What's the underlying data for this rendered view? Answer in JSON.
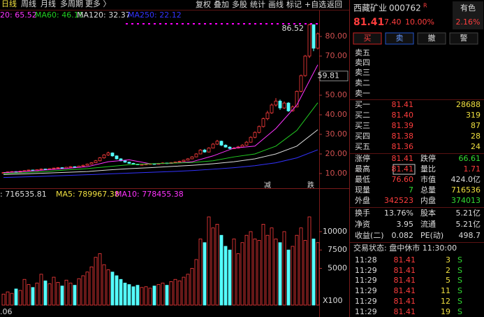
{
  "period_tabs": [
    "日线",
    "周线",
    "月线",
    "多周期",
    "更多 〉"
  ],
  "tools": [
    "复权",
    "叠加",
    "多股",
    "统计",
    "画线",
    "标记",
    "+自选",
    "返回"
  ],
  "price_chart": {
    "legend": [
      "20: 65.52",
      "MA60: 46.15",
      "MA120: 32.37",
      "MA250: 22.12"
    ],
    "ylim": [
      5.7,
      87.9
    ],
    "yticks": [
      {
        "value": 80,
        "label": "80.00"
      },
      {
        "value": 70,
        "label": "70.00"
      },
      {
        "value": 60,
        "label": "60.00"
      },
      {
        "value": 50,
        "label": "50.00"
      },
      {
        "value": 40,
        "label": "40.00"
      },
      {
        "value": 30,
        "label": "30.00"
      },
      {
        "value": 20,
        "label": "20.00"
      },
      {
        "value": 10,
        "label": "10.00"
      }
    ],
    "cursor_label": {
      "value": 59.81,
      "label": "59.81"
    },
    "high_label": "86.52",
    "markers": [
      "减",
      "跌"
    ],
    "candles": [
      [
        10.3,
        10.7,
        10.1,
        10.5
      ],
      [
        10.5,
        11,
        10.4,
        10.8
      ],
      [
        10.8,
        11.2,
        10.6,
        11
      ],
      [
        11,
        11.1,
        10.5,
        10.7
      ],
      [
        10.7,
        11.4,
        10.6,
        11.2
      ],
      [
        11.2,
        11.7,
        11,
        11.5
      ],
      [
        11.5,
        12,
        11.3,
        11.8
      ],
      [
        11.8,
        11.9,
        11.2,
        11.4
      ],
      [
        11.4,
        12.2,
        11.3,
        12
      ],
      [
        12,
        12.6,
        11.9,
        12.3
      ],
      [
        12.3,
        12.4,
        11.9,
        12.1
      ],
      [
        12.1,
        12.7,
        12,
        12.5
      ],
      [
        12.5,
        13,
        12.3,
        12.8
      ],
      [
        12.8,
        13.3,
        12.6,
        13
      ],
      [
        13,
        13.1,
        12.4,
        12.6
      ],
      [
        12.6,
        13.4,
        12.5,
        13.2
      ],
      [
        13.2,
        13.8,
        13,
        13.5
      ],
      [
        13.5,
        13.6,
        12.9,
        13.1
      ],
      [
        13.1,
        14,
        13,
        13.8
      ],
      [
        13.8,
        14.5,
        13.6,
        14.2
      ],
      [
        14.2,
        15.1,
        14,
        14.8
      ],
      [
        14.8,
        15.8,
        14.6,
        15.5
      ],
      [
        15.5,
        16.9,
        15.3,
        16.5
      ],
      [
        16.5,
        18.4,
        16.2,
        18
      ],
      [
        18,
        19.9,
        17.6,
        19.5
      ],
      [
        19.5,
        21.2,
        19,
        20.5
      ],
      [
        20.5,
        20.8,
        18.6,
        19
      ],
      [
        19,
        19.3,
        17.2,
        17.5
      ],
      [
        17.5,
        17.8,
        16.2,
        16.5
      ],
      [
        16.5,
        16.9,
        15.5,
        15.8
      ],
      [
        15.8,
        16,
        15,
        15.2
      ],
      [
        15.2,
        15.5,
        14.6,
        14.8
      ],
      [
        14.8,
        15,
        14.3,
        14.5
      ],
      [
        14.5,
        14.9,
        14.3,
        14.6
      ],
      [
        14.6,
        15.1,
        14.4,
        14.8
      ],
      [
        14.8,
        15.3,
        14.6,
        15
      ],
      [
        15,
        15.1,
        14.5,
        14.7
      ],
      [
        14.7,
        15.4,
        14.6,
        15.2
      ],
      [
        15.2,
        15.7,
        15,
        15.4
      ],
      [
        15.4,
        15.5,
        14.9,
        15.1
      ],
      [
        15.1,
        15.8,
        15,
        15.6
      ],
      [
        15.6,
        16.1,
        15.4,
        15.9
      ],
      [
        15.9,
        16.5,
        15.7,
        16.2
      ],
      [
        16.2,
        17.1,
        16,
        16.8
      ],
      [
        16.8,
        17.9,
        16.6,
        17.5
      ],
      [
        17.5,
        18.9,
        17.3,
        18.5
      ],
      [
        18.5,
        20.4,
        18.3,
        20
      ],
      [
        20,
        22.5,
        19.8,
        22
      ],
      [
        22,
        22.6,
        20.6,
        21
      ],
      [
        21,
        23.4,
        20.8,
        23
      ],
      [
        23,
        25.6,
        22.8,
        25
      ],
      [
        25,
        27.2,
        24.6,
        26.5
      ],
      [
        26.5,
        26.8,
        24,
        24.5
      ],
      [
        24.5,
        24.9,
        23.2,
        23.5
      ],
      [
        23.5,
        23.9,
        22.4,
        22.8
      ],
      [
        22.8,
        23.5,
        22.5,
        23
      ],
      [
        23,
        24.1,
        22.8,
        23.6
      ],
      [
        23.6,
        25,
        23.4,
        24.5
      ],
      [
        24.5,
        26.6,
        24.2,
        26
      ],
      [
        26,
        29,
        25.8,
        28.5
      ],
      [
        28.5,
        31.5,
        28,
        31
      ],
      [
        31,
        34.5,
        30.5,
        34
      ],
      [
        34,
        38.6,
        33.5,
        38
      ],
      [
        38,
        42,
        37.2,
        41
      ],
      [
        41,
        45.8,
        40.5,
        45
      ],
      [
        45,
        48.5,
        44.2,
        47
      ],
      [
        47,
        47.8,
        42.5,
        43.5
      ],
      [
        43.5,
        46.8,
        43,
        46
      ],
      [
        46,
        46.5,
        41.5,
        42
      ],
      [
        42,
        44.8,
        41.6,
        44
      ],
      [
        44,
        52.4,
        43.8,
        52
      ],
      [
        52,
        60.5,
        51.5,
        60
      ],
      [
        60,
        70.5,
        59.5,
        70
      ],
      [
        70,
        86.52,
        69,
        86
      ],
      [
        86,
        86.2,
        72.5,
        74
      ],
      [
        74,
        82,
        73.4,
        81.41
      ]
    ],
    "ma": [
      {
        "name": "MA20",
        "color": "#ff33ff",
        "x": [
          0,
          5,
          10,
          15,
          20,
          25,
          30,
          35,
          40,
          45,
          50,
          55,
          60,
          65,
          70,
          75
        ],
        "values": [
          10.5,
          11,
          11.8,
          12.6,
          13.5,
          16,
          17,
          15,
          15.2,
          16,
          19,
          23,
          24,
          33,
          45,
          65.52
        ]
      },
      {
        "name": "MA60",
        "color": "#22cc22",
        "x": [
          0,
          5,
          10,
          15,
          20,
          25,
          30,
          35,
          40,
          45,
          50,
          55,
          60,
          65,
          70,
          75
        ],
        "values": [
          10,
          10.5,
          11,
          11.8,
          12.5,
          13.5,
          14.5,
          15,
          15.3,
          15.6,
          16.5,
          18.5,
          20,
          24,
          32,
          46.15
        ]
      },
      {
        "name": "MA120",
        "color": "#dddddd",
        "x": [
          0,
          5,
          10,
          15,
          20,
          25,
          30,
          35,
          40,
          45,
          50,
          55,
          60,
          65,
          70,
          75
        ],
        "values": [
          9.5,
          9.8,
          10.2,
          10.6,
          11,
          11.8,
          12.5,
          13,
          13.6,
          14.2,
          15,
          16,
          17.5,
          20,
          24,
          32.37
        ]
      },
      {
        "name": "MA250",
        "color": "#3333ff",
        "x": [
          0,
          5,
          10,
          15,
          20,
          25,
          30,
          35,
          40,
          45,
          50,
          55,
          60,
          65,
          70,
          75
        ],
        "values": [
          8,
          8.3,
          8.6,
          9,
          9.4,
          9.8,
          10.2,
          10.6,
          11,
          11.5,
          12.2,
          13,
          14,
          15.5,
          18,
          22.12
        ]
      }
    ]
  },
  "volume_chart": {
    "legend": [
      ": 716535.81",
      "MA5: 789967.38",
      "MA10: 778455.38"
    ],
    "ylim": [
      0,
      13900
    ],
    "yticks": [
      5000,
      7500,
      10000
    ],
    "unit": "X100",
    "corner": ".06",
    "values": [
      1500,
      1800,
      1600,
      2200,
      2000,
      3500,
      2800,
      2400,
      3000,
      4200,
      3300,
      2900,
      3800,
      3100,
      2600,
      3400,
      3000,
      2700,
      3600,
      4000,
      4500,
      5200,
      6500,
      7000,
      5500,
      4800,
      4500,
      4000,
      3500,
      3000,
      2800,
      2500,
      2700,
      2400,
      2500,
      2300,
      2600,
      2800,
      3000,
      2700,
      3200,
      3500,
      3300,
      3800,
      4200,
      5000,
      6200,
      9000,
      8500,
      12000,
      10500,
      11000,
      9500,
      8000,
      7500,
      9000,
      7000,
      8500,
      9500,
      10000,
      9000,
      8800,
      11000,
      9500,
      10500,
      9000,
      8500,
      10000,
      7500,
      8000,
      9500,
      10500,
      8800,
      12000,
      9000,
      8500
    ]
  },
  "quote_panel": {
    "name": "西藏矿业",
    "code": "000762",
    "badge": "R",
    "sector": "有色",
    "sector_change": "2.16%",
    "price": "81.41",
    "change": "7.40",
    "percent": "10.00%",
    "buttons": [
      "买",
      "卖",
      "撤",
      "警"
    ],
    "asks": [
      "卖五",
      "卖四",
      "卖三",
      "卖二",
      "卖一"
    ],
    "bids": [
      [
        "买一",
        "81.41",
        "28688"
      ],
      [
        "买二",
        "81.40",
        "319"
      ],
      [
        "买三",
        "81.39",
        "87"
      ],
      [
        "买四",
        "81.38",
        "28"
      ],
      [
        "买五",
        "81.36",
        "24"
      ]
    ],
    "stats": [
      [
        "涨停",
        "81.41",
        "跌停",
        "66.61"
      ],
      [
        "最高",
        "81.41",
        "量比",
        "1.71"
      ],
      [
        "最低",
        "76.60",
        "市值",
        "424.0亿"
      ],
      [
        "现量",
        "7",
        "总量",
        "716536"
      ],
      [
        "外盘",
        "342523",
        "内盘",
        "374013"
      ]
    ],
    "stats2": [
      [
        "换手",
        "13.76%",
        "股本",
        "5.21亿"
      ],
      [
        "净资",
        "3.95",
        "流通",
        "5.21亿"
      ],
      [
        "收益(二)",
        "0.082",
        "PE(动)",
        "498.7"
      ]
    ],
    "status": "交易状态: 盘中休市 11:30:00",
    "ticks": [
      [
        "11:28",
        "81.41",
        "3",
        "S"
      ],
      [
        "11:29",
        "81.41",
        "2",
        "S"
      ],
      [
        "11:29",
        "81.41",
        "5",
        "S"
      ],
      [
        "11:29",
        "81.41",
        "11",
        "S"
      ],
      [
        "11:29",
        "81.41",
        "12",
        "S"
      ],
      [
        "11:29",
        "81.41",
        "19",
        "S"
      ]
    ]
  }
}
